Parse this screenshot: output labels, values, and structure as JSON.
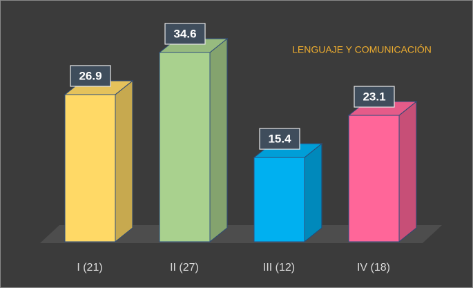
{
  "chart_data": {
    "type": "bar",
    "title": "LENGUAJE Y COMUNICACIÓN",
    "categories": [
      "I (21)",
      "II (27)",
      "III (12)",
      "IV (18)"
    ],
    "values": [
      26.9,
      34.6,
      15.4,
      23.1
    ],
    "colors": [
      "#FFD966",
      "#A9D18E",
      "#00B0F0",
      "#FF6699"
    ]
  }
}
